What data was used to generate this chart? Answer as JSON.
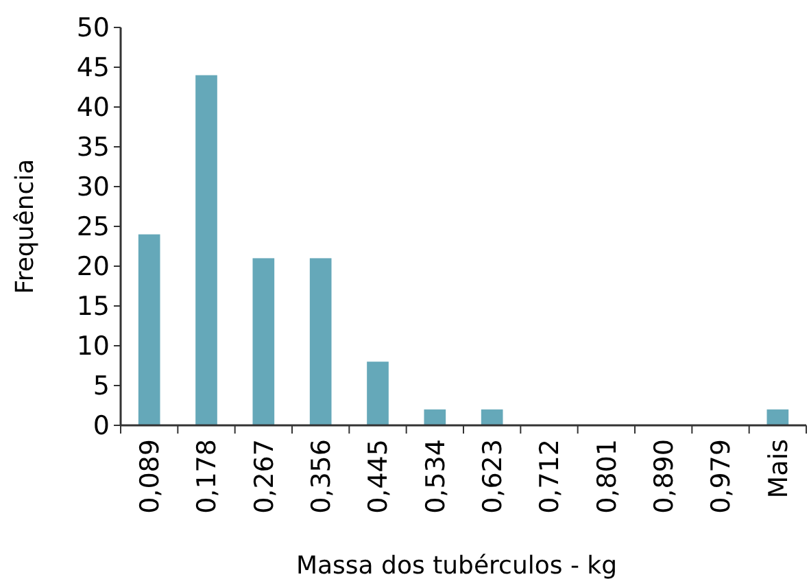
{
  "chart_data": {
    "type": "bar",
    "xlabel": "Massa dos tubérculos - kg",
    "ylabel": "Frequência",
    "categories": [
      "0,089",
      "0,178",
      "0,267",
      "0,356",
      "0,445",
      "0,534",
      "0,623",
      "0,712",
      "0,801",
      "0,890",
      "0,979",
      "Mais"
    ],
    "values": [
      24,
      44,
      21,
      21,
      8,
      2,
      2,
      0,
      0,
      0,
      0,
      2
    ],
    "color": "#65a8b9",
    "ylim": [
      0,
      50
    ],
    "yticks": [
      0,
      5,
      10,
      15,
      20,
      25,
      30,
      35,
      40,
      45,
      50
    ],
    "grid": false
  }
}
